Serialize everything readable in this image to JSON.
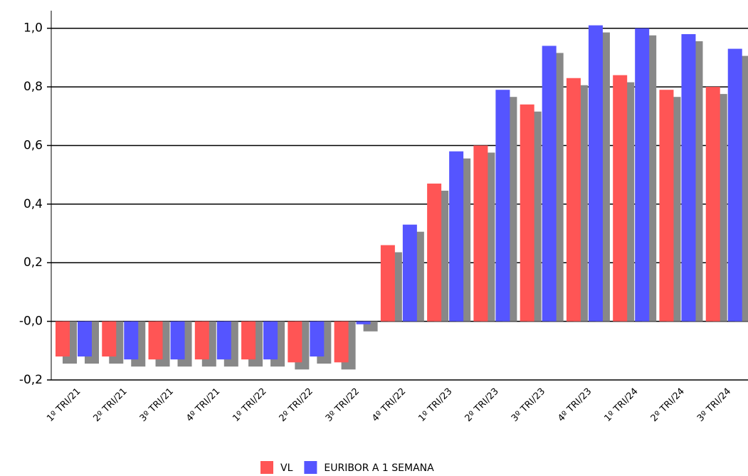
{
  "chart_data": {
    "type": "bar",
    "categories": [
      "1º TRI/21",
      "2º TRI/21",
      "3º TRI/21",
      "4º TRI/21",
      "1º TRI/22",
      "2º TRI/22",
      "3º TRI/22",
      "4º TRI/22",
      "1º TRI/23",
      "2º TRI/23",
      "3º TRI/23",
      "4º TRI/23",
      "1º TRI/24",
      "2º TRI/24",
      "3º TRI/24"
    ],
    "series": [
      {
        "name": "VL",
        "color": "#ff5555",
        "values": [
          -0.12,
          -0.12,
          -0.13,
          -0.13,
          -0.13,
          -0.14,
          -0.14,
          0.26,
          0.47,
          0.6,
          0.74,
          0.83,
          0.84,
          0.79,
          0.8
        ]
      },
      {
        "name": "EURIBOR A 1 SEMANA",
        "color": "#5555ff",
        "values": [
          -0.12,
          -0.13,
          -0.13,
          -0.13,
          -0.13,
          -0.12,
          -0.01,
          0.33,
          0.58,
          0.79,
          0.94,
          1.01,
          1.0,
          0.98,
          0.93
        ]
      }
    ],
    "ylim": [
      -0.2,
      1.06
    ],
    "yticks": [
      {
        "value": -0.2,
        "label": "-0,2"
      },
      {
        "value": 0,
        "label": "-0,0"
      },
      {
        "value": 0.2,
        "label": "0,2"
      },
      {
        "value": 0.4,
        "label": "0,4"
      },
      {
        "value": 0.6,
        "label": "0,6"
      },
      {
        "value": 0.8,
        "label": "0,8"
      },
      {
        "value": 1.0,
        "label": "1,0"
      }
    ],
    "grid": true
  }
}
